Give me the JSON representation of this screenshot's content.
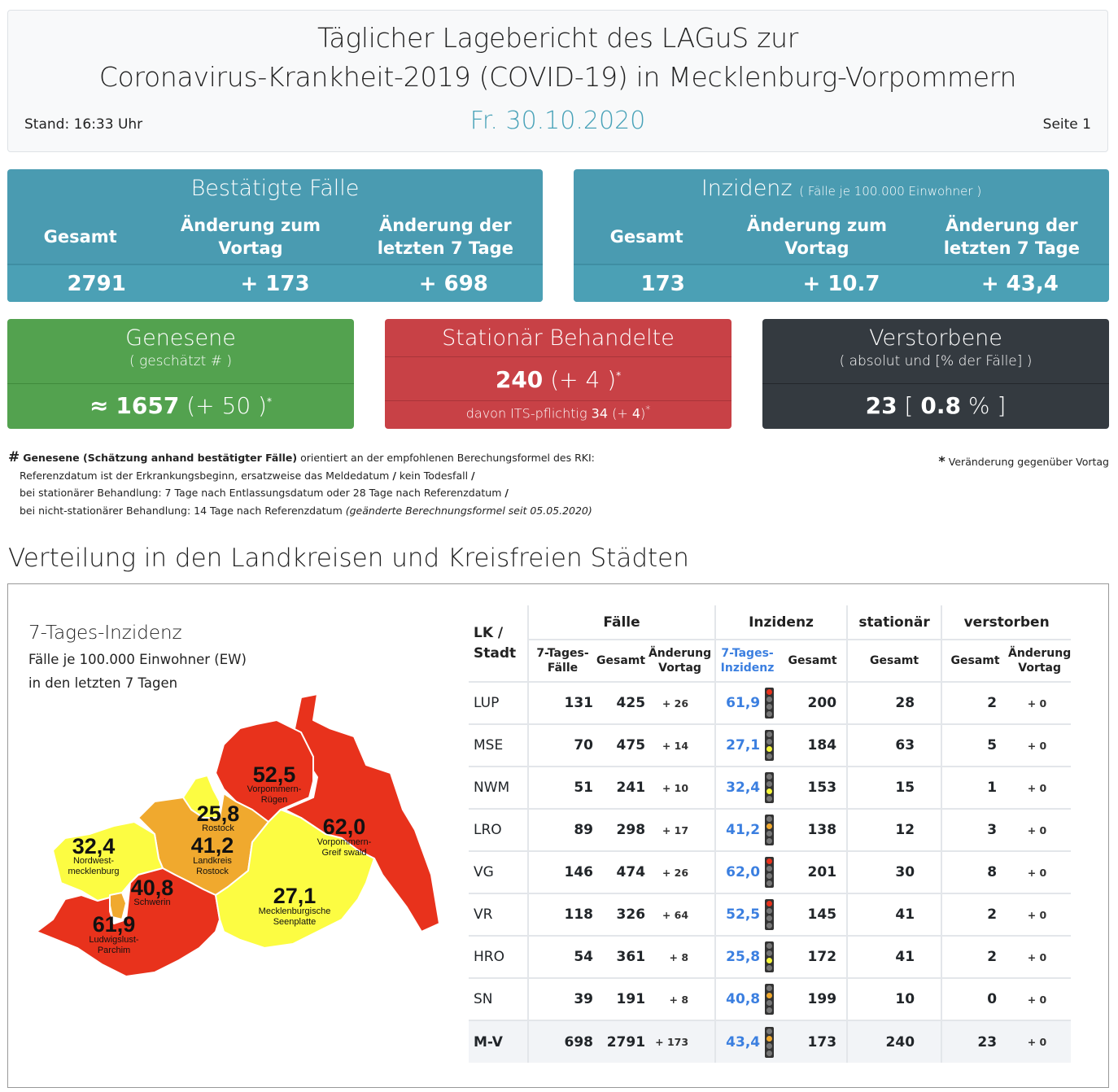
{
  "header": {
    "title_line1": "Täglicher Lagebericht des LAGuS zur",
    "title_line2": "Coronavirus-Krankheit-2019 (COVID-19) in Mecklenburg-Vorpommern",
    "date": "Fr. 30.10.2020",
    "stand": "Stand: 16:33 Uhr",
    "page": "Seite 1"
  },
  "confirmed": {
    "title": "Bestätigte Fälle",
    "col1": "Gesamt",
    "col2": "Änderung zum Vortag",
    "col3": "Änderung der letzten 7 Tage",
    "val1": "2791",
    "val2": "+ 173",
    "val3": "+ 698"
  },
  "incidence": {
    "title": "Inzidenz",
    "title_small": "( Fälle je 100.000 Einwohner )",
    "col1": "Gesamt",
    "col2": "Änderung zum Vortag",
    "col3": "Änderung der letzten 7 Tage",
    "val1": "173",
    "val2": "+ 10.7",
    "val3": "+ 43,4"
  },
  "recovered": {
    "title": "Genesene",
    "subtitle": "( geschätzt # )",
    "approx": "≈",
    "value": "1657",
    "change": "(+ 50 )",
    "star": "*",
    "color": "#53a24f"
  },
  "hospital": {
    "title": "Stationär Behandelte",
    "value": "240",
    "change": "(+ 4 )",
    "star": "*",
    "its_label": "davon ITS-pflichtig",
    "its_value": "34",
    "its_change_open": "(+ ",
    "its_change_val": "4",
    "its_change_close": ")",
    "color": "#c84146"
  },
  "deaths": {
    "title": "Verstorbene",
    "subtitle": "( absolut und [% der Fälle] )",
    "value": "23",
    "pct_open": "[",
    "pct": "0.8",
    "pct_close": "% ]",
    "color": "#343a40"
  },
  "footnotes": {
    "hash": "#",
    "bold": "Genesene (Schätzung anhand bestätigter Fälle)",
    "line1_rest": "orientiert an der empfohlenen Berechungsformel des RKI:",
    "line2": "Referenzdatum ist der Erkrankungsbeginn, ersatzweise das Meldedatum",
    "line2b": "kein Todesfall",
    "line3": "bei stationärer Behandlung: 7 Tage nach Entlassungsdatum oder 28 Tage nach Referenzdatum",
    "line4": "bei nicht-stationärer Behandlung: 14 Tage nach Referenzdatum",
    "line4_italic": "(geänderte Berechnungsformel seit 05.05.2020)",
    "slash": "/",
    "star": "*",
    "star_note": "Veränderung gegenüber Vortag"
  },
  "section_title": "Verteilung in den Landkreisen und Kreisfreien Städten",
  "map": {
    "title": "7-Tages-Inzidenz",
    "subtitle1": "Fälle je 100.000 Einwohner (EW)",
    "subtitle2": "in den letzten 7 Tagen",
    "colors": {
      "red": "#e8321c",
      "orange": "#f0a92e",
      "yellow": "#fcfc42"
    },
    "regions": [
      {
        "value": "52,5",
        "name1": "Vorpommern-",
        "name2": "Rügen"
      },
      {
        "value": "62,0",
        "name1": "Vorpommern-",
        "name2": "Greif swald"
      },
      {
        "value": "25,8",
        "name1": "Rostock",
        "name2": ""
      },
      {
        "value": "41,2",
        "name1": "Landkreis",
        "name2": "Rostock"
      },
      {
        "value": "32,4",
        "name1": "Nordwest-",
        "name2": "mecklenburg"
      },
      {
        "value": "40,8",
        "name1": "Schwerin",
        "name2": ""
      },
      {
        "value": "27,1",
        "name1": "Mecklenburgische",
        "name2": "Seenplatte"
      },
      {
        "value": "61,9",
        "name1": "Ludwigslust-",
        "name2": "Parchim"
      }
    ]
  },
  "table": {
    "h_lk": "LK /",
    "h_stadt": "Stadt",
    "h_faelle": "Fälle",
    "h_inzidenz": "Inzidenz",
    "h_stationaer": "stationär",
    "h_verstorben": "verstorben",
    "s_7tage_1": "7-Tages-",
    "s_7tage_2": "Fälle",
    "s_gesamt": "Gesamt",
    "s_aend_1": "Änderung",
    "s_aend_2": "Vortag",
    "s_inz_1": "7-Tages-",
    "s_inz_2": "Inzidenz",
    "rows": [
      {
        "name": "LUP",
        "f7": "131",
        "fg": "425",
        "fa": "+ 26",
        "inz7": "61,9",
        "light": "red",
        "inzg": "200",
        "stat": "28",
        "vg": "2",
        "va": "+ 0"
      },
      {
        "name": "MSE",
        "f7": "70",
        "fg": "475",
        "fa": "+ 14",
        "inz7": "27,1",
        "light": "yellow",
        "inzg": "184",
        "stat": "63",
        "vg": "5",
        "va": "+ 0"
      },
      {
        "name": "NWM",
        "f7": "51",
        "fg": "241",
        "fa": "+ 10",
        "inz7": "32,4",
        "light": "yellow",
        "inzg": "153",
        "stat": "15",
        "vg": "1",
        "va": "+ 0"
      },
      {
        "name": "LRO",
        "f7": "89",
        "fg": "298",
        "fa": "+ 17",
        "inz7": "41,2",
        "light": "orange",
        "inzg": "138",
        "stat": "12",
        "vg": "3",
        "va": "+ 0"
      },
      {
        "name": "VG",
        "f7": "146",
        "fg": "474",
        "fa": "+ 26",
        "inz7": "62,0",
        "light": "red",
        "inzg": "201",
        "stat": "30",
        "vg": "8",
        "va": "+ 0"
      },
      {
        "name": "VR",
        "f7": "118",
        "fg": "326",
        "fa": "+ 64",
        "inz7": "52,5",
        "light": "red",
        "inzg": "145",
        "stat": "41",
        "vg": "2",
        "va": "+ 0"
      },
      {
        "name": "HRO",
        "f7": "54",
        "fg": "361",
        "fa": "+ 8",
        "inz7": "25,8",
        "light": "yellow",
        "inzg": "172",
        "stat": "41",
        "vg": "2",
        "va": "+ 0"
      },
      {
        "name": "SN",
        "f7": "39",
        "fg": "191",
        "fa": "+ 8",
        "inz7": "40,8",
        "light": "orange",
        "inzg": "199",
        "stat": "10",
        "vg": "0",
        "va": "+ 0"
      },
      {
        "name": "M-V",
        "f7": "698",
        "fg": "2791",
        "fa": "+ 173",
        "inz7": "43,4",
        "light": "orange",
        "inzg": "173",
        "stat": "240",
        "vg": "23",
        "va": "+ 0"
      }
    ]
  }
}
